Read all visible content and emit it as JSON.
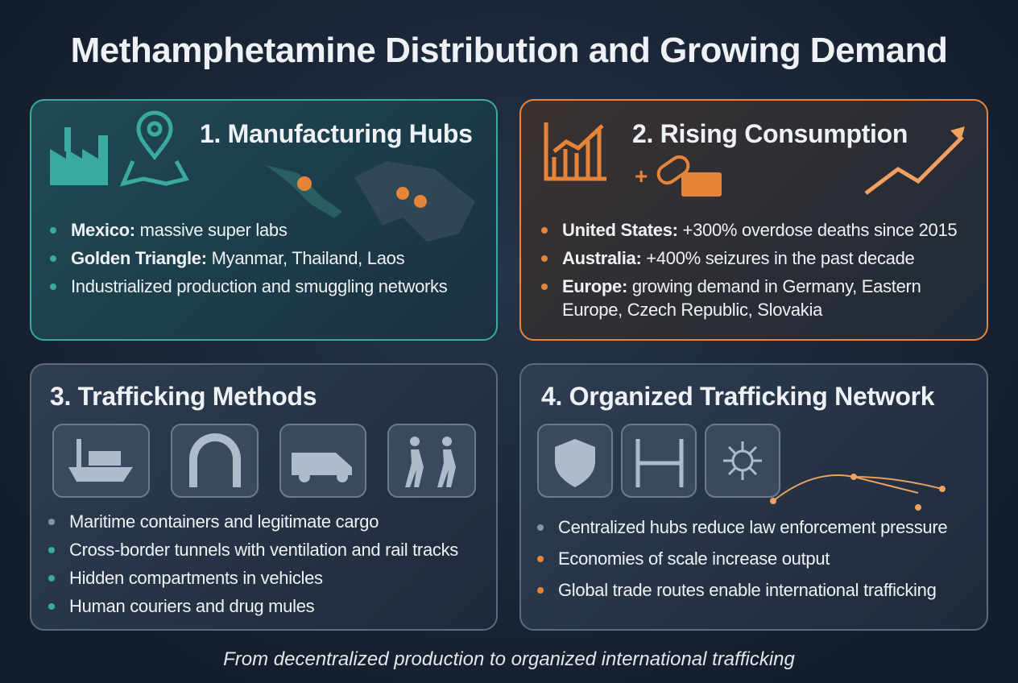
{
  "title": "Methamphetamine Distribution and Growing Demand",
  "panels": [
    {
      "title": "1. Manufacturing Hubs",
      "bullets": [
        {
          "label": "Mexico:",
          "text": "massive super labs"
        },
        {
          "label": "Golden Triangle:",
          "text": "Myanmar, Thailand, Laos"
        },
        {
          "text": "Industrialized production and smuggling networks"
        }
      ]
    },
    {
      "title": "2. Rising Consumption",
      "bullets": [
        {
          "label": "United States:",
          "text": "+300% overdose deaths since 2015"
        },
        {
          "label": "Australia:",
          "text": "+400% seizures in the past decade"
        },
        {
          "label": "Europe:",
          "text": "growing demand in Germany, Eastern Europe, Czech Republic, Slovakia"
        }
      ]
    },
    {
      "title": "3. Trafficking Methods",
      "bullets": [
        {
          "text": "Maritime containers and legitimate cargo"
        },
        {
          "text": "Cross-border tunnels with ventilation and rail tracks"
        },
        {
          "text": "Hidden compartments in vehicles"
        },
        {
          "text": "Human couriers and drug mules"
        }
      ]
    },
    {
      "title": "4. Organized Trafficking Network",
      "bullets": [
        {
          "text": "Centralized hubs reduce law enforcement pressure"
        },
        {
          "text": "Economies of scale increase output"
        },
        {
          "text": "Global trade routes enable international trafficking"
        }
      ]
    }
  ],
  "footer": "From decentralized production to organized international trafficking"
}
